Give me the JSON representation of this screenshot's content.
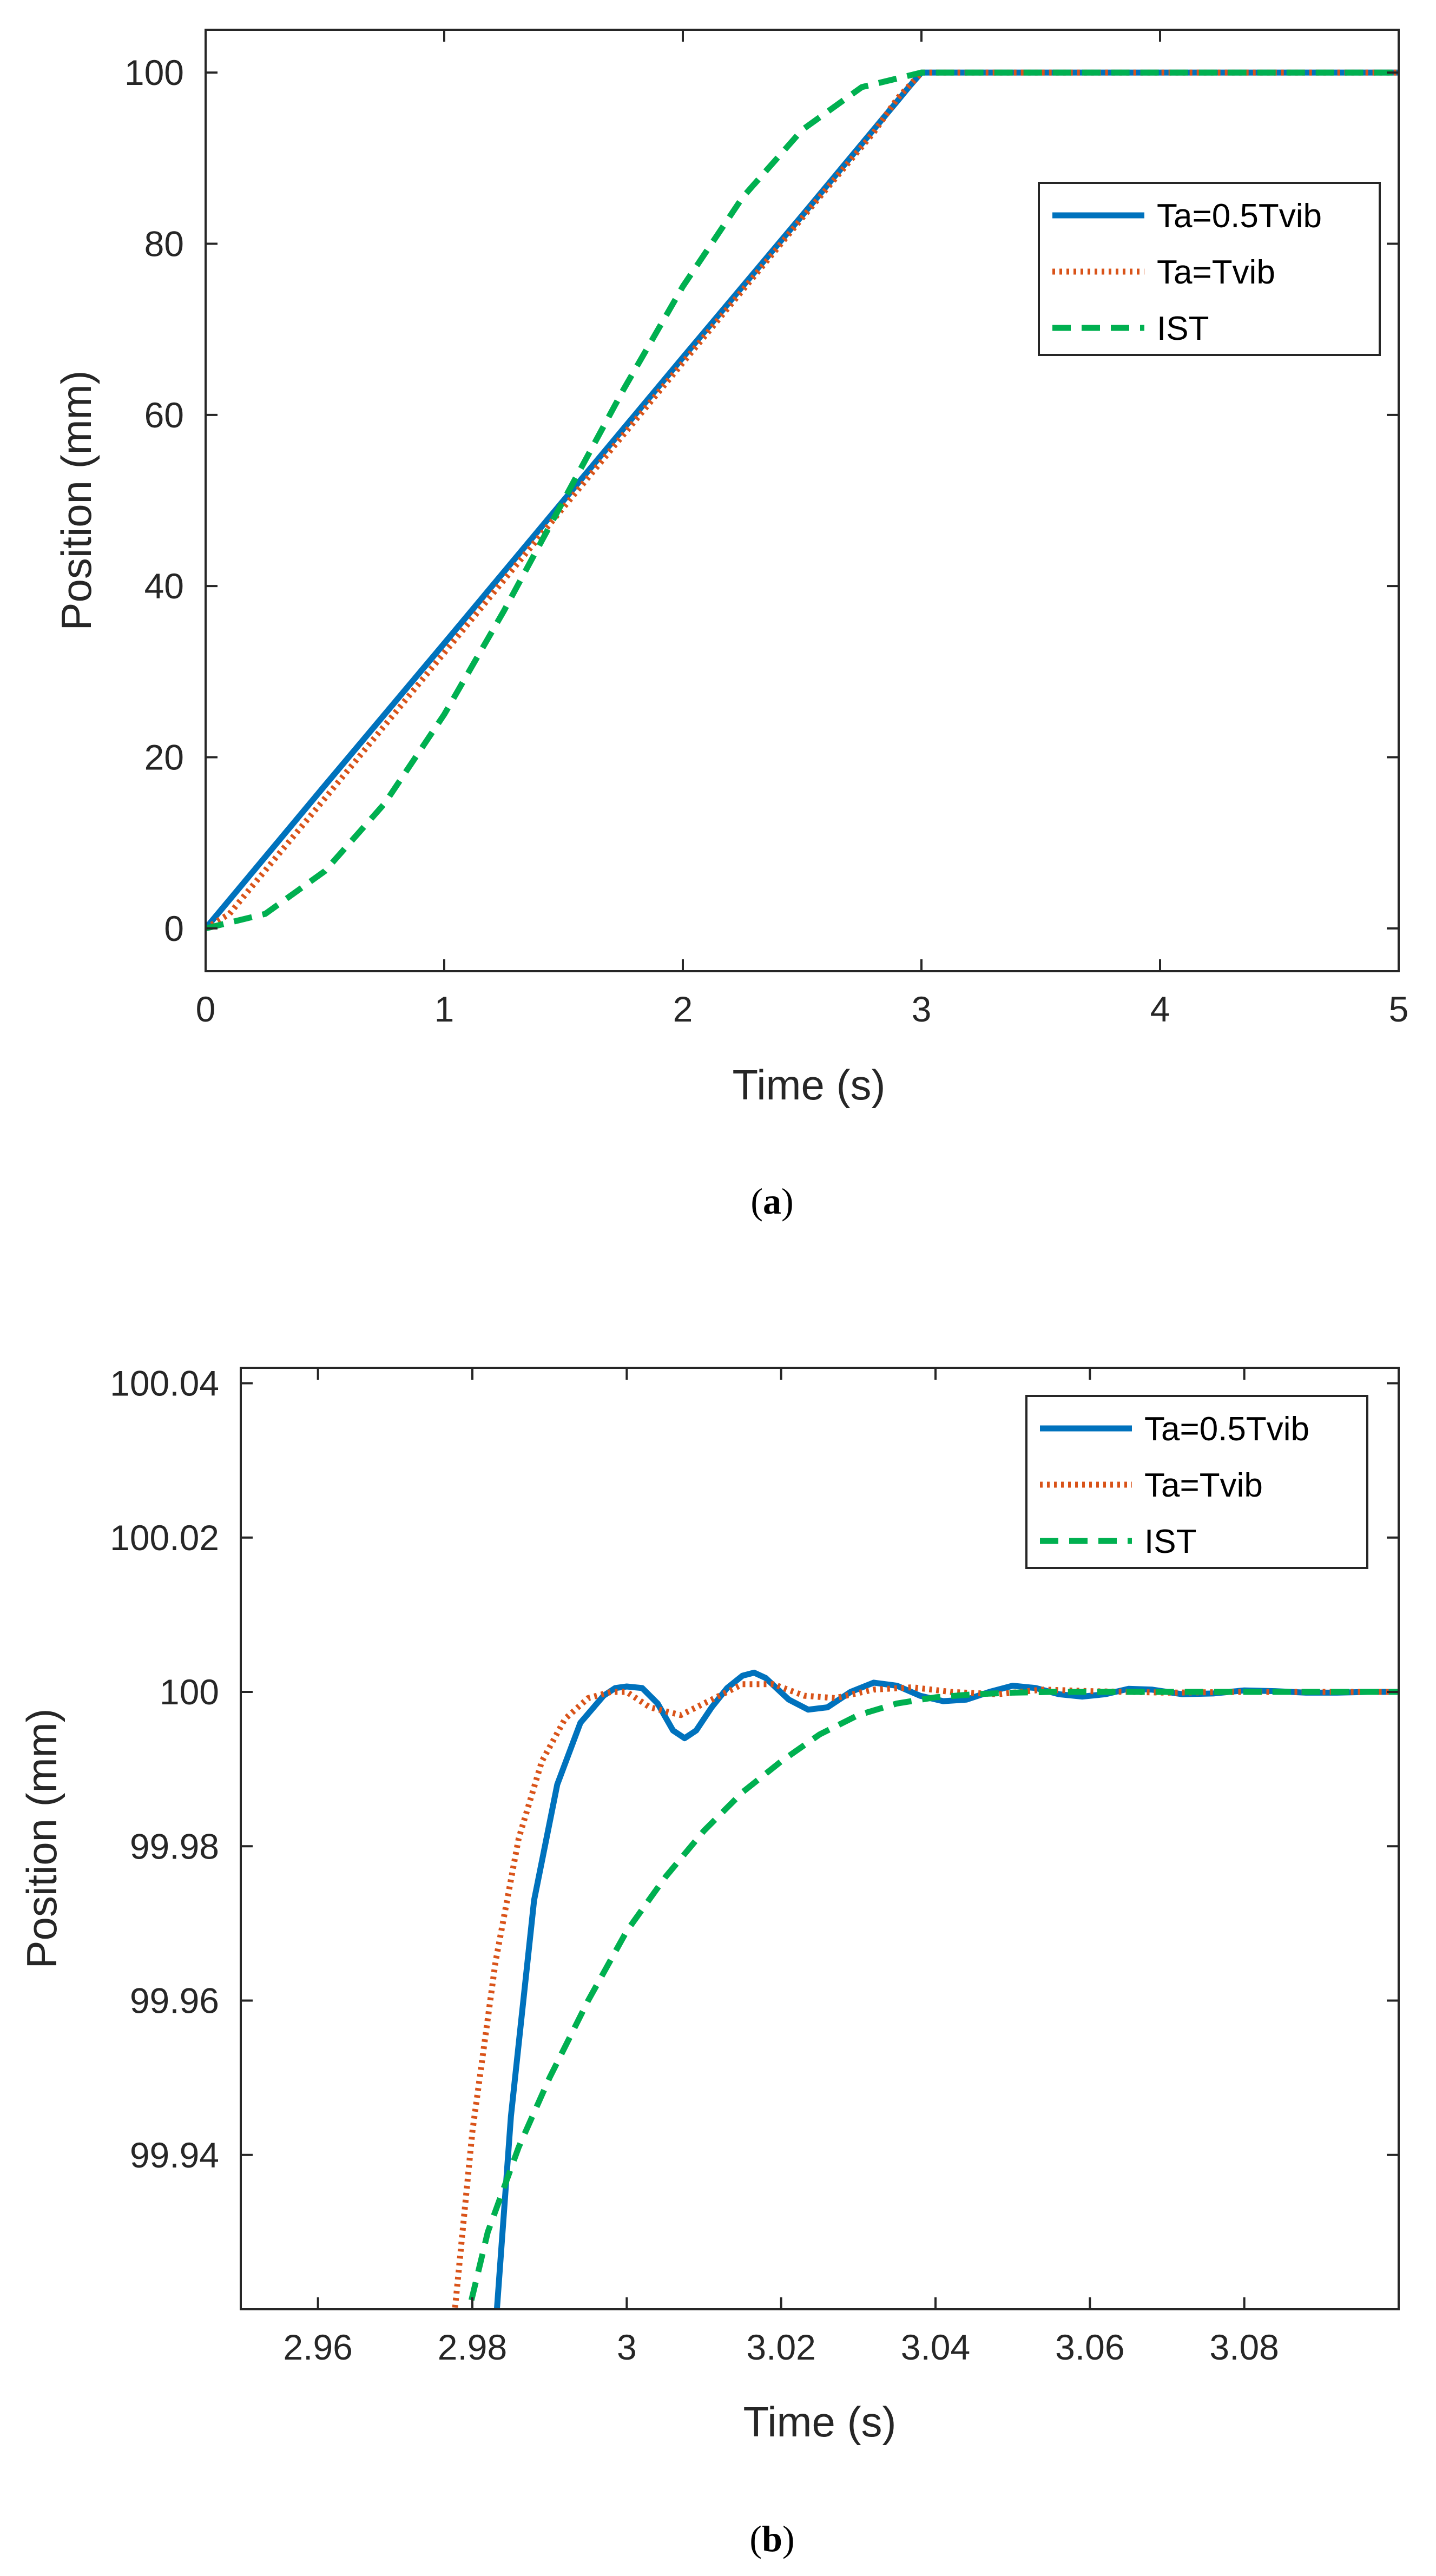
{
  "chart_data": [
    {
      "type": "line",
      "caption": {
        "open": "(",
        "letter": "a",
        "close": ")"
      },
      "xlabel": "Time (s)",
      "ylabel": "Position (mm)",
      "xlim": [
        0,
        5
      ],
      "ylim": [
        -5,
        105
      ],
      "xticks": [
        0,
        1,
        2,
        3,
        4,
        5
      ],
      "xtick_labels": [
        "0",
        "1",
        "2",
        "3",
        "4",
        "5"
      ],
      "yticks": [
        0,
        20,
        40,
        60,
        80,
        100
      ],
      "ytick_labels": [
        "0",
        "20",
        "40",
        "60",
        "80",
        "100"
      ],
      "legend_position": "top-right",
      "series": [
        {
          "name": "Ta=0.5Tvib",
          "color": "#0072BD",
          "style": "solid",
          "x": [
            0,
            0.5,
            1.0,
            1.5,
            2.0,
            2.5,
            2.9,
            2.95,
            3.0,
            3.5,
            4.0,
            4.5,
            5.0
          ],
          "y": [
            0,
            16.7,
            33.3,
            50.0,
            66.7,
            83.3,
            96.7,
            98.4,
            100,
            100,
            100,
            100,
            100
          ]
        },
        {
          "name": "Ta=Tvib",
          "color": "#D95319",
          "style": "dotted",
          "x": [
            0,
            0.1,
            0.2,
            0.5,
            1.0,
            1.5,
            2.0,
            2.5,
            2.8,
            2.9,
            3.0,
            3.5,
            4.0,
            4.5,
            5.0
          ],
          "y": [
            0,
            1.7,
            5.1,
            15.2,
            32.2,
            49.2,
            66.1,
            83.0,
            93.0,
            97.0,
            100,
            100,
            100,
            100,
            100
          ]
        },
        {
          "name": "IST",
          "color": "#00B050",
          "style": "dashed",
          "x": [
            0,
            0.25,
            0.5,
            0.75,
            1.0,
            1.25,
            1.5,
            1.75,
            2.0,
            2.25,
            2.5,
            2.75,
            3.0,
            3.5,
            4.0,
            4.5,
            5.0
          ],
          "y": [
            0,
            1.7,
            6.7,
            14.6,
            25.0,
            37.1,
            50.0,
            62.9,
            75.0,
            85.4,
            93.3,
            98.3,
            100,
            100,
            100,
            100,
            100
          ]
        }
      ]
    },
    {
      "type": "line",
      "caption": {
        "open": "(",
        "letter": "b",
        "close": ")"
      },
      "xlabel": "Time (s)",
      "ylabel": "Position (mm)",
      "xlim": [
        2.95,
        3.1
      ],
      "ylim": [
        99.92,
        100.042
      ],
      "xticks": [
        2.96,
        2.98,
        3.0,
        3.02,
        3.04,
        3.06,
        3.08
      ],
      "xtick_labels": [
        "2.96",
        "2.98",
        "3",
        "3.02",
        "3.04",
        "3.06",
        "3.08"
      ],
      "yticks": [
        99.94,
        99.96,
        99.98,
        100.0,
        100.02,
        100.04
      ],
      "ytick_labels": [
        "99.94",
        "99.96",
        "99.98",
        "100",
        "100.02",
        "100.04"
      ],
      "legend_position": "top-right",
      "series": [
        {
          "name": "Ta=0.5Tvib",
          "color": "#0072BD",
          "style": "solid",
          "x": [
            2.983,
            2.985,
            2.988,
            2.991,
            2.994,
            2.997,
            2.9985,
            3.0,
            3.002,
            3.004,
            3.006,
            3.0075,
            3.009,
            3.011,
            3.013,
            3.015,
            3.0165,
            3.018,
            3.021,
            3.0235,
            3.026,
            3.029,
            3.032,
            3.035,
            3.038,
            3.041,
            3.044,
            3.047,
            3.05,
            3.053,
            3.056,
            3.059,
            3.062,
            3.065,
            3.068,
            3.072,
            3.076,
            3.08,
            3.084,
            3.088,
            3.092,
            3.096,
            3.1
          ],
          "y": [
            99.9175,
            99.945,
            99.973,
            99.988,
            99.996,
            99.9995,
            100.0005,
            100.0007,
            100.0005,
            99.9985,
            99.995,
            99.994,
            99.995,
            99.998,
            100.0005,
            100.0021,
            100.0025,
            100.0018,
            99.999,
            99.9977,
            99.998,
            100.0,
            100.0012,
            100.0008,
            99.9995,
            99.9988,
            99.999,
            100.0,
            100.0008,
            100.0005,
            99.9997,
            99.9994,
            99.9997,
            100.0004,
            100.0003,
            99.9997,
            99.9998,
            100.0002,
            100.0001,
            99.9999,
            99.9999,
            100.0,
            100.0
          ]
        },
        {
          "name": "Ta=Tvib",
          "color": "#D95319",
          "style": "dotted",
          "x": [
            2.9775,
            2.98,
            2.983,
            2.986,
            2.989,
            2.992,
            2.995,
            2.998,
            3.0,
            3.003,
            3.007,
            3.011,
            3.015,
            3.019,
            3.023,
            3.027,
            3.032,
            3.037,
            3.042,
            3.048,
            3.054,
            3.06,
            3.07,
            3.08,
            3.09,
            3.1
          ],
          "y": [
            99.9175,
            99.943,
            99.965,
            99.981,
            99.991,
            99.9965,
            99.9992,
            100.0,
            100.0,
            99.998,
            99.997,
            99.999,
            100.001,
            100.001,
            99.9995,
            99.9992,
            100.0003,
            100.0006,
            100.0,
            99.9997,
            100.0003,
            100.0001,
            99.9999,
            100.0,
            100.0,
            100.0
          ]
        },
        {
          "name": "IST",
          "color": "#00B050",
          "style": "dashed",
          "x": [
            2.979,
            2.982,
            2.986,
            2.99,
            2.995,
            3.0,
            3.005,
            3.01,
            3.015,
            3.02,
            3.025,
            3.03,
            3.035,
            3.04,
            3.045,
            3.05,
            3.055,
            3.06,
            3.07,
            3.08,
            3.09,
            3.1
          ],
          "y": [
            99.9175,
            99.93,
            99.941,
            99.95,
            99.96,
            99.969,
            99.976,
            99.982,
            99.987,
            99.991,
            99.9945,
            99.997,
            99.9985,
            99.9993,
            99.9997,
            99.9999,
            100.0,
            100.0,
            100.0,
            100.0,
            100.0,
            100.0
          ]
        }
      ]
    }
  ]
}
